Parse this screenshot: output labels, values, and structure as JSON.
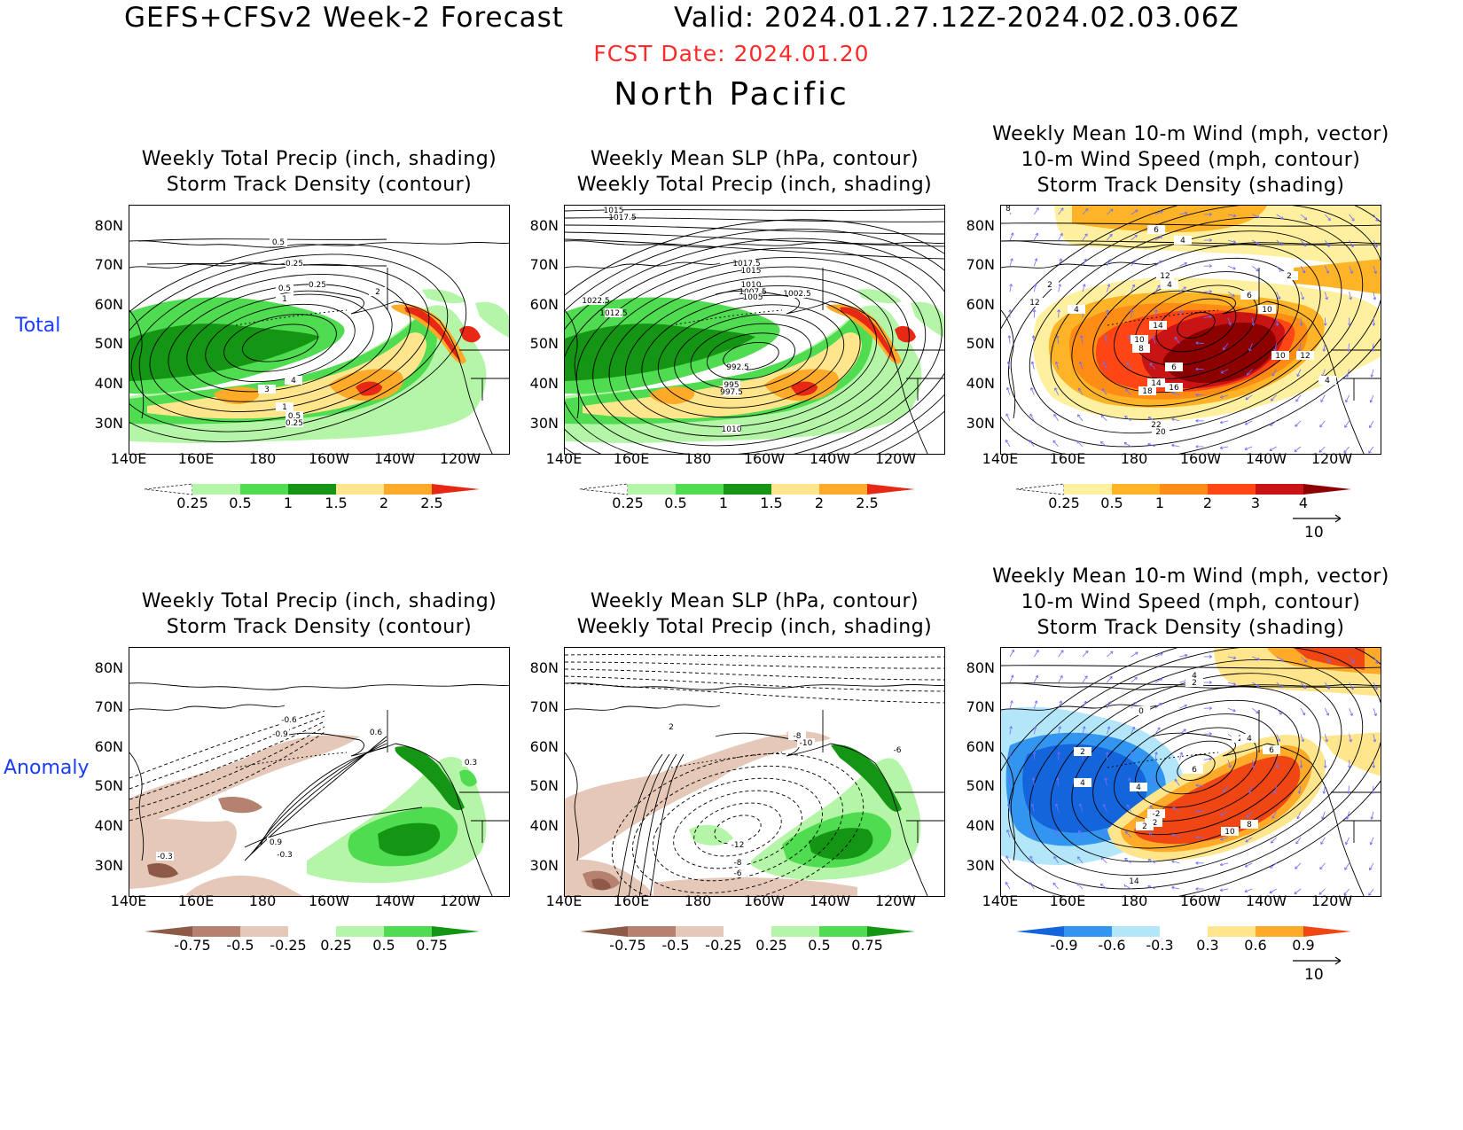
{
  "header": {
    "title": "GEFS+CFSv2 Week-2 Forecast",
    "valid": "Valid: 2024.01.27.12Z-2024.02.03.06Z",
    "fcst_date": "FCST Date: 2024.01.20",
    "region": "North Pacific"
  },
  "row_labels": {
    "total": "Total",
    "anomaly": "Anomaly"
  },
  "axes": {
    "lat": [
      "80N",
      "70N",
      "60N",
      "50N",
      "40N",
      "30N"
    ],
    "lon": [
      "140E",
      "160E",
      "180",
      "160W",
      "140W",
      "120W"
    ]
  },
  "panels": {
    "total_precip": {
      "title1": "Weekly Total Precip (inch, shading)",
      "title2": "Storm Track Density (contour)",
      "contour_labels": [
        "0.5",
        "0.25",
        "0.25",
        "0.5",
        "1",
        "2",
        "3",
        "4",
        "1",
        "0.5",
        "0.25"
      ],
      "colorbar": [
        "0.25",
        "0.5",
        "1",
        "1.5",
        "2",
        "2.5"
      ]
    },
    "total_slp": {
      "title1": "Weekly Mean SLP (hPa, contour)",
      "title2": "Weekly Total Precip (inch, shading)",
      "contour_labels": [
        "1015",
        "1017.5",
        "1017.5",
        "1015",
        "1010",
        "1007.5",
        "1005",
        "1002.5",
        "1022.5",
        "1012.5",
        "992.5",
        "995",
        "997.5",
        "1010"
      ],
      "colorbar": [
        "0.25",
        "0.5",
        "1",
        "1.5",
        "2",
        "2.5"
      ]
    },
    "total_wind": {
      "title1": "Weekly Mean 10-m Wind (mph, vector)",
      "title2": "10-m Wind Speed (mph, contour)",
      "title3": "Storm Track Density (shading)",
      "contour_labels": [
        "8",
        "6",
        "4",
        "12",
        "2",
        "4",
        "2",
        "6",
        "10",
        "12",
        "4",
        "10",
        "14",
        "10",
        "8",
        "6",
        "12",
        "14",
        "16",
        "18",
        "22",
        "20",
        "4"
      ],
      "colorbar": [
        "0.25",
        "0.5",
        "1",
        "2",
        "3",
        "4"
      ],
      "vector_ref": "10"
    },
    "anom_precip": {
      "title1": "Weekly Total Precip (inch, shading)",
      "title2": "Storm Track Density (contour)",
      "contour_labels": [
        "-0.6",
        "-0.9",
        "0.6",
        "0.3",
        "0.9",
        "-0.3",
        "-0.3"
      ],
      "colorbar": [
        "-0.75",
        "-0.5",
        "-0.25",
        "0.25",
        "0.5",
        "0.75"
      ]
    },
    "anom_slp": {
      "title1": "Weekly Mean SLP (hPa, contour)",
      "title2": "Weekly Total Precip (inch, shading)",
      "contour_labels": [
        "2",
        "-8",
        "-10",
        "-6",
        "-12",
        "-8",
        "-6"
      ],
      "colorbar": [
        "-0.75",
        "-0.5",
        "-0.25",
        "0.25",
        "0.5",
        "0.75"
      ]
    },
    "anom_wind": {
      "title1": "Weekly Mean 10-m Wind (mph, vector)",
      "title2": "10-m Wind Speed (mph, contour)",
      "title3": "Storm Track Density (shading)",
      "contour_labels": [
        "4",
        "2",
        "0",
        "2",
        "4",
        "4",
        "2",
        "4",
        "6",
        "6",
        "-2",
        "-2",
        "2",
        "10",
        "8",
        "14"
      ],
      "colorbar": [
        "-0.9",
        "-0.6",
        "-0.3",
        "0.3",
        "0.6",
        "0.9"
      ],
      "vector_ref": "10"
    }
  },
  "colors": {
    "precip_scale": [
      "#ffffff",
      "#b4f5a8",
      "#50dc50",
      "#149614",
      "#ffe68c",
      "#ffaa28",
      "#e62814"
    ],
    "stdens_scale": [
      "#ffffff",
      "#fff0a0",
      "#ffb428",
      "#ff8c14",
      "#ff4614",
      "#c81414",
      "#8c0000"
    ],
    "anom_precip_scale": [
      "#8c5a46",
      "#b4826e",
      "#e6c8b9",
      "#ffffff",
      "#b4f5a8",
      "#50dc50",
      "#149614"
    ],
    "anom_stdens_scale": [
      "#1464dc",
      "#3296f0",
      "#b4e6fa",
      "#ffffff",
      "#ffe68c",
      "#ffaa28",
      "#f04614"
    ],
    "title_red": "#ff2a2a",
    "row_label_blue": "#1a3cff",
    "wind_vector": "#6e6eff"
  }
}
